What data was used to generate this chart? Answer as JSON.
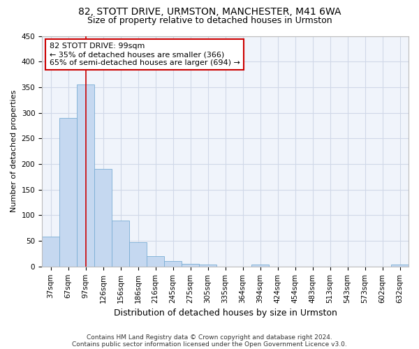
{
  "title1": "82, STOTT DRIVE, URMSTON, MANCHESTER, M41 6WA",
  "title2": "Size of property relative to detached houses in Urmston",
  "xlabel": "Distribution of detached houses by size in Urmston",
  "ylabel": "Number of detached properties",
  "footnote1": "Contains HM Land Registry data © Crown copyright and database right 2024.",
  "footnote2": "Contains public sector information licensed under the Open Government Licence v3.0.",
  "categories": [
    "37sqm",
    "67sqm",
    "97sqm",
    "126sqm",
    "156sqm",
    "186sqm",
    "216sqm",
    "245sqm",
    "275sqm",
    "305sqm",
    "335sqm",
    "364sqm",
    "394sqm",
    "424sqm",
    "454sqm",
    "483sqm",
    "513sqm",
    "543sqm",
    "573sqm",
    "602sqm",
    "632sqm"
  ],
  "values": [
    58,
    290,
    355,
    190,
    90,
    47,
    20,
    10,
    5,
    4,
    0,
    0,
    4,
    0,
    0,
    0,
    0,
    0,
    0,
    0,
    4
  ],
  "bar_color": "#c5d8f0",
  "bar_edge_color": "#7aadd4",
  "vline_x_index": 2,
  "vline_color": "#cc0000",
  "annotation_line1": "82 STOTT DRIVE: 99sqm",
  "annotation_line2": "← 35% of detached houses are smaller (366)",
  "annotation_line3": "65% of semi-detached houses are larger (694) →",
  "annotation_box_facecolor": "#ffffff",
  "annotation_box_edgecolor": "#cc0000",
  "ylim": [
    0,
    450
  ],
  "yticks": [
    0,
    50,
    100,
    150,
    200,
    250,
    300,
    350,
    400,
    450
  ],
  "fig_bg_color": "#ffffff",
  "plot_bg_color": "#f0f4fb",
  "grid_color": "#d0d8e8",
  "title1_fontsize": 10,
  "title2_fontsize": 9,
  "xlabel_fontsize": 9,
  "ylabel_fontsize": 8,
  "tick_fontsize": 7.5,
  "annot_fontsize": 8,
  "footnote_fontsize": 6.5
}
